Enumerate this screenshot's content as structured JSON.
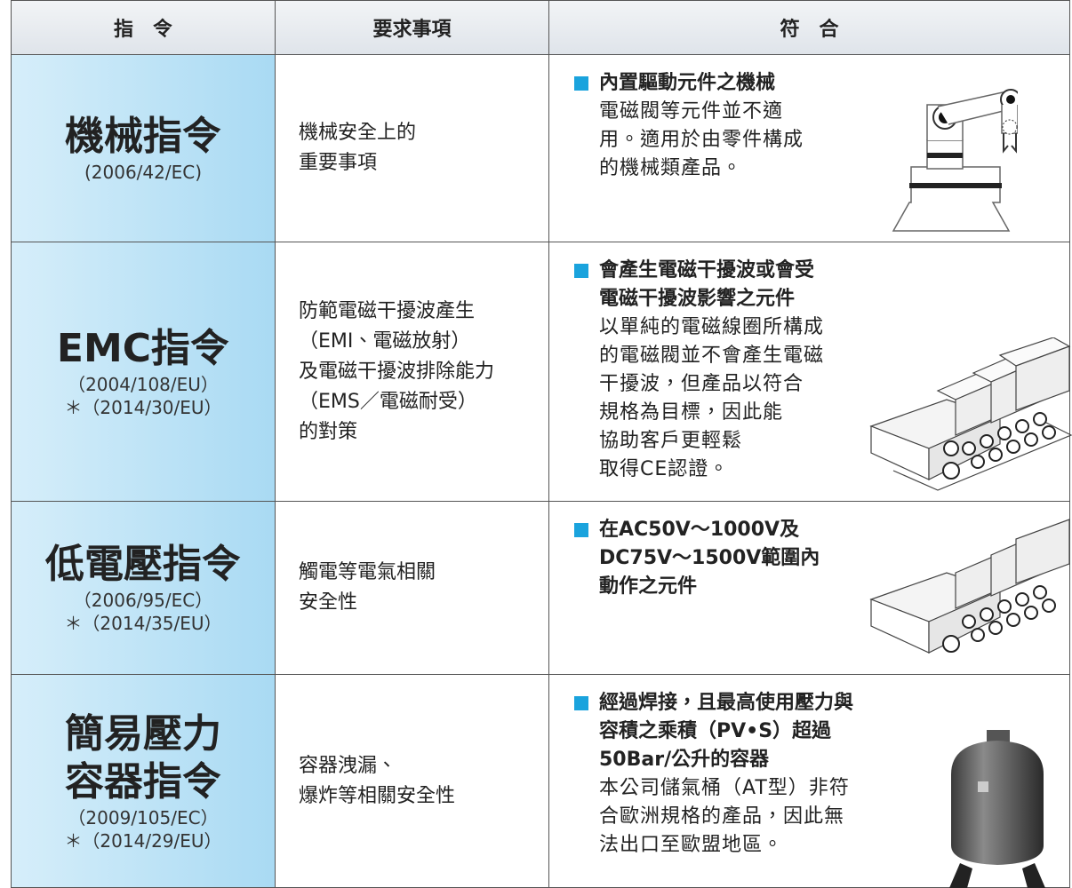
{
  "header": [
    "指　令",
    "要求事項",
    "符　合"
  ],
  "rows": [
    {
      "directive": [
        "機械指令"
      ],
      "codes": [
        "(2006/42/EC)"
      ],
      "requirement": [
        "機械安全上的",
        "重要事項"
      ],
      "conformity_title": [
        "內置驅動元件之機械"
      ],
      "conformity_body": [
        "電磁閥等元件並不適",
        "用。適用於由零件構成",
        "的機械類產品。"
      ]
    },
    {
      "directive": [
        "EMC指令"
      ],
      "codes": [
        "（2004/108/EU）",
        "＊（2014/30/EU）"
      ],
      "requirement": [
        "防範電磁干擾波產生",
        "（EMI、電磁放射）",
        "及電磁干擾波排除能力",
        "（EMS／電磁耐受）",
        "的對策"
      ],
      "conformity_title": [
        "會產生電磁干擾波或會受",
        "電磁干擾波影響之元件"
      ],
      "conformity_body": [
        "以單純的電磁線圈所構成",
        "的電磁閥並不會產生電磁",
        "干擾波，但產品以符合",
        "規格為目標，因此能",
        "協助客戶更輕鬆",
        "取得CE認證。"
      ]
    },
    {
      "directive": [
        "低電壓指令"
      ],
      "codes": [
        "（2006/95/EC）",
        "＊（2014/35/EU）"
      ],
      "requirement": [
        "觸電等電氣相關",
        "安全性"
      ],
      "conformity_title": [
        "在AC50V～1000V及",
        "DC75V～1500V範圍內",
        "動作之元件"
      ]
    },
    {
      "directive": [
        "簡易壓力",
        "容器指令"
      ],
      "codes": [
        "（2009/105/EC）",
        "＊（2014/29/EU）"
      ],
      "requirement": [
        "容器洩漏、",
        "爆炸等相關安全性"
      ],
      "conformity_title": [
        "經過焊接，且最高使用壓力與",
        "容積之乘積（PV•S）超過",
        "50Bar/公升的容器"
      ],
      "conformity_body": [
        "本公司儲氣桶（AT型）非符",
        "合歐洲規格的產品，因此無",
        "法出口至歐盟地區。"
      ]
    }
  ]
}
